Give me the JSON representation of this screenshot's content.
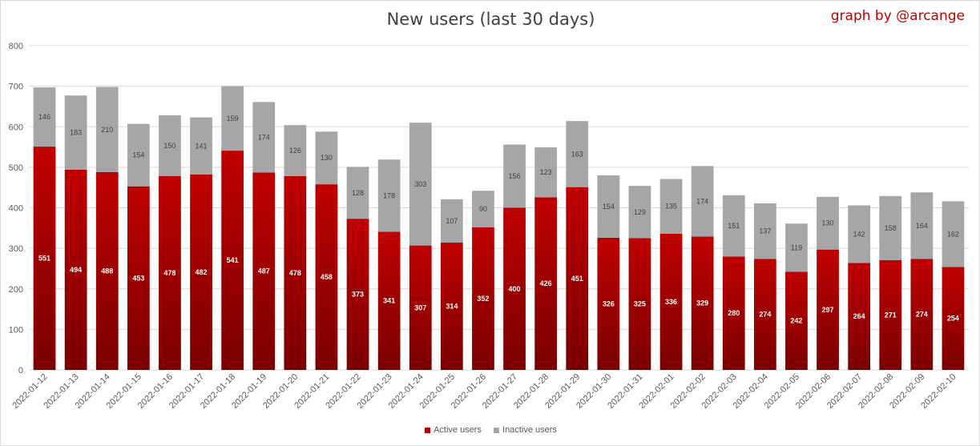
{
  "header": {
    "title": "New users (last 30 days)",
    "credit": "graph by @arcange"
  },
  "colors": {
    "active_top": "#c00000",
    "active_bottom": "#7a0000",
    "inactive": "#a6a6a6",
    "grid": "#d9d9d9"
  },
  "legend": {
    "items": [
      {
        "label": "Active users",
        "color": "#c00000"
      },
      {
        "label": "Inactive users",
        "color": "#a6a6a6"
      }
    ],
    "position": "bottom"
  },
  "chart_data": {
    "type": "bar",
    "stacked": true,
    "title": "New users (last 30 days)",
    "xlabel": "",
    "ylabel": "",
    "ylim": [
      0,
      800
    ],
    "yticks": [
      0,
      100,
      200,
      300,
      400,
      500,
      600,
      700,
      800
    ],
    "grid": true,
    "categories": [
      "2022-01-12",
      "2022-01-13",
      "2022-01-14",
      "2022-01-15",
      "2022-01-16",
      "2022-01-17",
      "2022-01-18",
      "2022-01-19",
      "2022-01-20",
      "2022-01-21",
      "2022-01-22",
      "2022-01-23",
      "2022-01-24",
      "2022-01-25",
      "2022-01-26",
      "2022-01-27",
      "2022-01-28",
      "2022-01-29",
      "2022-01-30",
      "2022-01-31",
      "2022-02-01",
      "2022-02-02",
      "2022-02-03",
      "2022-02-04",
      "2022-02-05",
      "2022-02-06",
      "2022-02-07",
      "2022-02-08",
      "2022-02-09",
      "2022-02-10"
    ],
    "series": [
      {
        "name": "Active users",
        "values": [
          551,
          494,
          488,
          453,
          478,
          482,
          541,
          487,
          478,
          458,
          373,
          341,
          307,
          314,
          352,
          400,
          426,
          451,
          326,
          325,
          336,
          329,
          280,
          274,
          242,
          297,
          264,
          271,
          274,
          254
        ]
      },
      {
        "name": "Inactive users",
        "values": [
          146,
          183,
          210,
          154,
          150,
          141,
          159,
          174,
          126,
          130,
          128,
          178,
          303,
          107,
          90,
          156,
          123,
          163,
          154,
          129,
          135,
          174,
          151,
          137,
          119,
          130,
          142,
          158,
          164,
          162
        ]
      }
    ]
  }
}
